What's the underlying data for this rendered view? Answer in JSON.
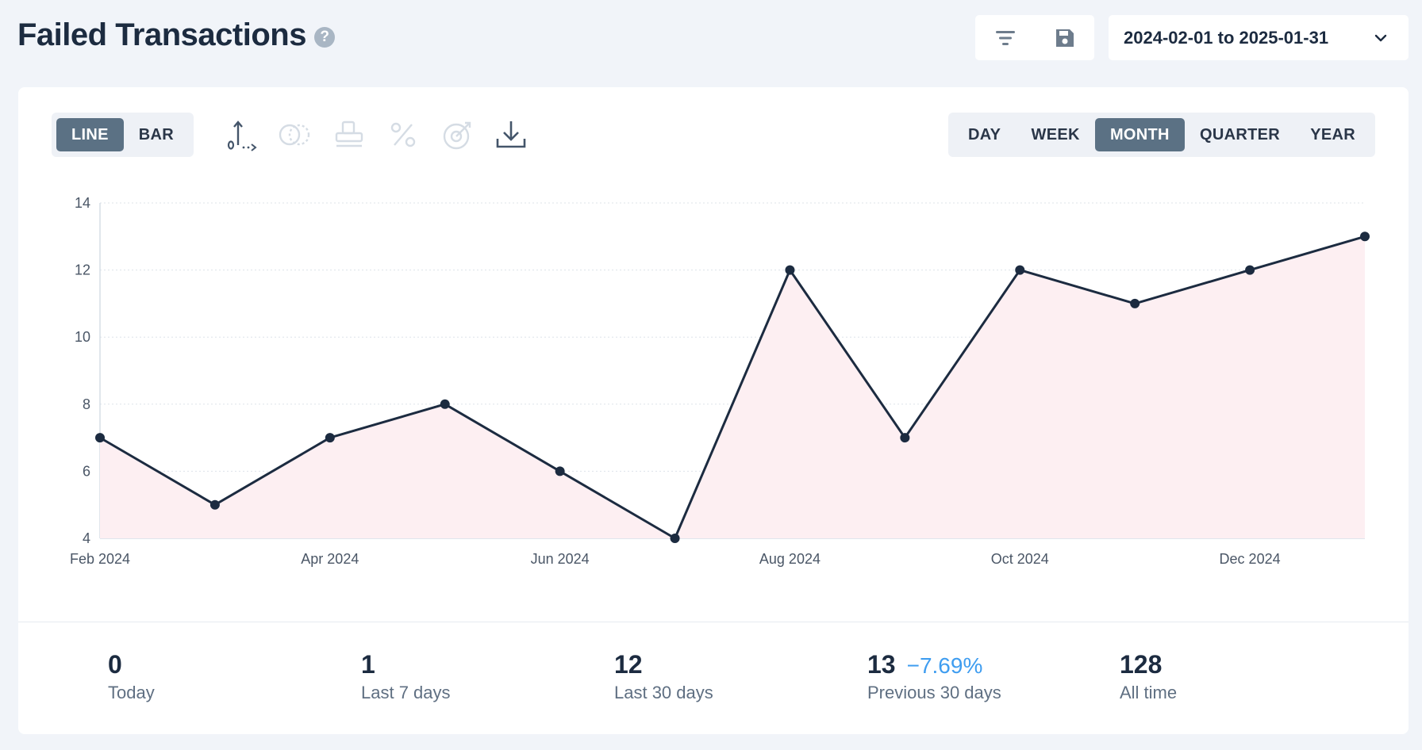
{
  "header": {
    "title": "Failed Transactions",
    "help_icon": "question-circle-icon",
    "date_range": "2024-02-01 to 2025-01-31"
  },
  "toolbar": {
    "chart_types": [
      "LINE",
      "BAR"
    ],
    "active_chart_type": "LINE",
    "periods": [
      "DAY",
      "WEEK",
      "MONTH",
      "QUARTER",
      "YEAR"
    ],
    "active_period": "MONTH",
    "icons": [
      "axis-zero-icon",
      "compare-overlap-icon",
      "stack-icon",
      "percent-icon",
      "goal-target-icon",
      "download-icon"
    ]
  },
  "colors": {
    "line": "#1c2b40",
    "area_fill": "#fdeff2",
    "active_button": "#5b7184",
    "positive_change": "#3f9df0"
  },
  "chart_data": {
    "type": "area",
    "x": [
      "2024-02",
      "2024-03",
      "2024-04",
      "2024-05",
      "2024-06",
      "2024-07",
      "2024-08",
      "2024-09",
      "2024-10",
      "2024-11",
      "2024-12",
      "2025-01"
    ],
    "series": [
      {
        "values": [
          7,
          5,
          7,
          8,
          6,
          4,
          12,
          7,
          12,
          11,
          12,
          13
        ]
      }
    ],
    "x_tick_labels": [
      "Feb 2024",
      "Apr 2024",
      "Jun 2024",
      "Aug 2024",
      "Oct 2024",
      "Dec 2024"
    ],
    "y_ticks": [
      4,
      6,
      8,
      10,
      12,
      14
    ],
    "ylim": [
      4,
      14
    ],
    "grid": true,
    "legend": "none",
    "title": "",
    "xlabel": "",
    "ylabel": ""
  },
  "stats": [
    {
      "value": "0",
      "label": "Today"
    },
    {
      "value": "1",
      "label": "Last 7 days"
    },
    {
      "value": "12",
      "label": "Last 30 days"
    },
    {
      "value": "13",
      "change": "−7.69%",
      "label": "Previous 30 days"
    },
    {
      "value": "128",
      "label": "All time"
    }
  ]
}
